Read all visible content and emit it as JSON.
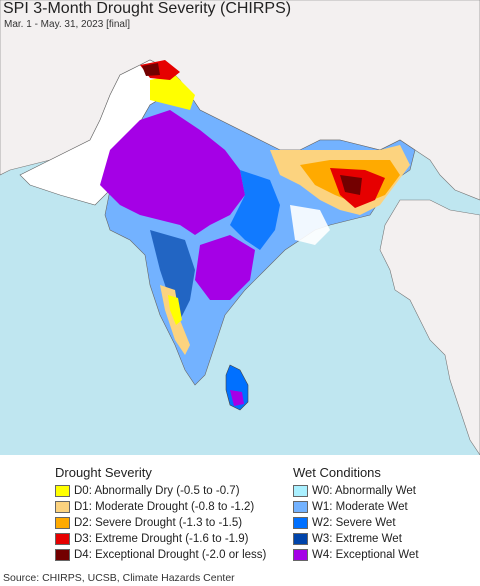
{
  "map": {
    "title": "SPI 3-Month Drought Severity (CHIRPS)",
    "subtitle": "Mar. 1 - May. 31, 2023 [final]"
  },
  "colors": {
    "ocean": "#bfe6f0",
    "land_outside": "#f3f0f0",
    "normal": "#ffffff",
    "borders": "#555555"
  },
  "legend": {
    "drought_title": "Drought Severity",
    "wet_title": "Wet Conditions",
    "drought_items": [
      {
        "label": "D0: Abnormally Dry (-0.5 to -0.7)",
        "color": "#ffff00"
      },
      {
        "label": "D1: Moderate Drought (-0.8 to -1.2)",
        "color": "#fcd37f"
      },
      {
        "label": "D2: Severe Drought (-1.3 to -1.5)",
        "color": "#ffaa00"
      },
      {
        "label": "D3: Extreme Drought (-1.6 to -1.9)",
        "color": "#e60000"
      },
      {
        "label": "D4: Exceptional Drought (-2.0 or less)",
        "color": "#730000"
      }
    ],
    "wet_items": [
      {
        "label": "W0: Abnormally Wet",
        "color": "#aaf0ff"
      },
      {
        "label": "W1: Moderate Wet",
        "color": "#73b2ff"
      },
      {
        "label": "W2: Severe Wet",
        "color": "#0070ff"
      },
      {
        "label": "W3: Extreme Wet",
        "color": "#0044aa"
      },
      {
        "label": "W4: Exceptional Wet",
        "color": "#a500e6"
      }
    ]
  },
  "source": "Source: CHIRPS, UCSB, Climate Hazards Center"
}
